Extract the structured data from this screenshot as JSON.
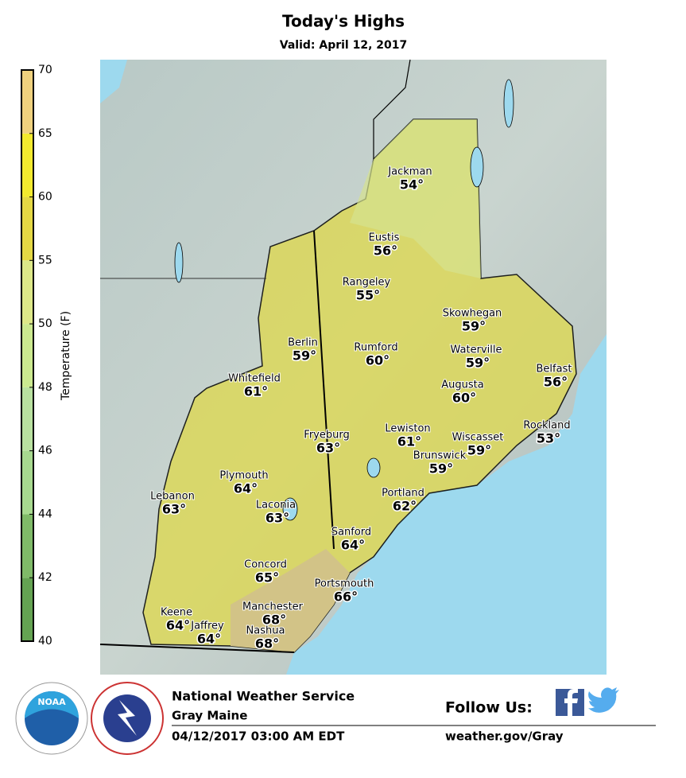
{
  "header": {
    "title": "Today's Highs",
    "subtitle": "Valid: April 12, 2017"
  },
  "colorbar": {
    "label": "Temperature (F)",
    "ticks": [
      40,
      42,
      44,
      46,
      48,
      50,
      55,
      60,
      65,
      70
    ],
    "colors": [
      "#64a352",
      "#7fba68",
      "#a7d98f",
      "#b9e1a0",
      "#cbe98f",
      "#dde888",
      "#e4d844",
      "#f3ea2e",
      "#efd17e"
    ]
  },
  "cities": [
    {
      "name": "Jackman",
      "temp": "54°"
    },
    {
      "name": "Eustis",
      "temp": "56°"
    },
    {
      "name": "Rangeley",
      "temp": "55°"
    },
    {
      "name": "Skowhegan",
      "temp": "59°"
    },
    {
      "name": "Berlin",
      "temp": "59°"
    },
    {
      "name": "Rumford",
      "temp": "60°"
    },
    {
      "name": "Waterville",
      "temp": "59°"
    },
    {
      "name": "Belfast",
      "temp": "56°"
    },
    {
      "name": "Whitefield",
      "temp": "61°"
    },
    {
      "name": "Augusta",
      "temp": "60°"
    },
    {
      "name": "Rockland",
      "temp": "53°"
    },
    {
      "name": "Lewiston",
      "temp": "61°"
    },
    {
      "name": "Fryeburg",
      "temp": "63°"
    },
    {
      "name": "Wiscasset",
      "temp": "59°"
    },
    {
      "name": "Brunswick",
      "temp": "59°"
    },
    {
      "name": "Plymouth",
      "temp": "64°"
    },
    {
      "name": "Lebanon",
      "temp": "63°"
    },
    {
      "name": "Portland",
      "temp": "62°"
    },
    {
      "name": "Laconia",
      "temp": "63°"
    },
    {
      "name": "Sanford",
      "temp": "64°"
    },
    {
      "name": "Concord",
      "temp": "65°"
    },
    {
      "name": "Portsmouth",
      "temp": "66°"
    },
    {
      "name": "Manchester",
      "temp": "68°"
    },
    {
      "name": "Keene",
      "temp": "64°"
    },
    {
      "name": "Jaffrey",
      "temp": "64°"
    },
    {
      "name": "Nashua",
      "temp": "68°"
    }
  ],
  "footer": {
    "org": "National Weather Service",
    "office": "Gray Maine",
    "issued": "04/12/2017 03:00 AM EDT",
    "follow": "Follow Us:",
    "url": "weather.gov/Gray",
    "noaa": "NOAA"
  }
}
